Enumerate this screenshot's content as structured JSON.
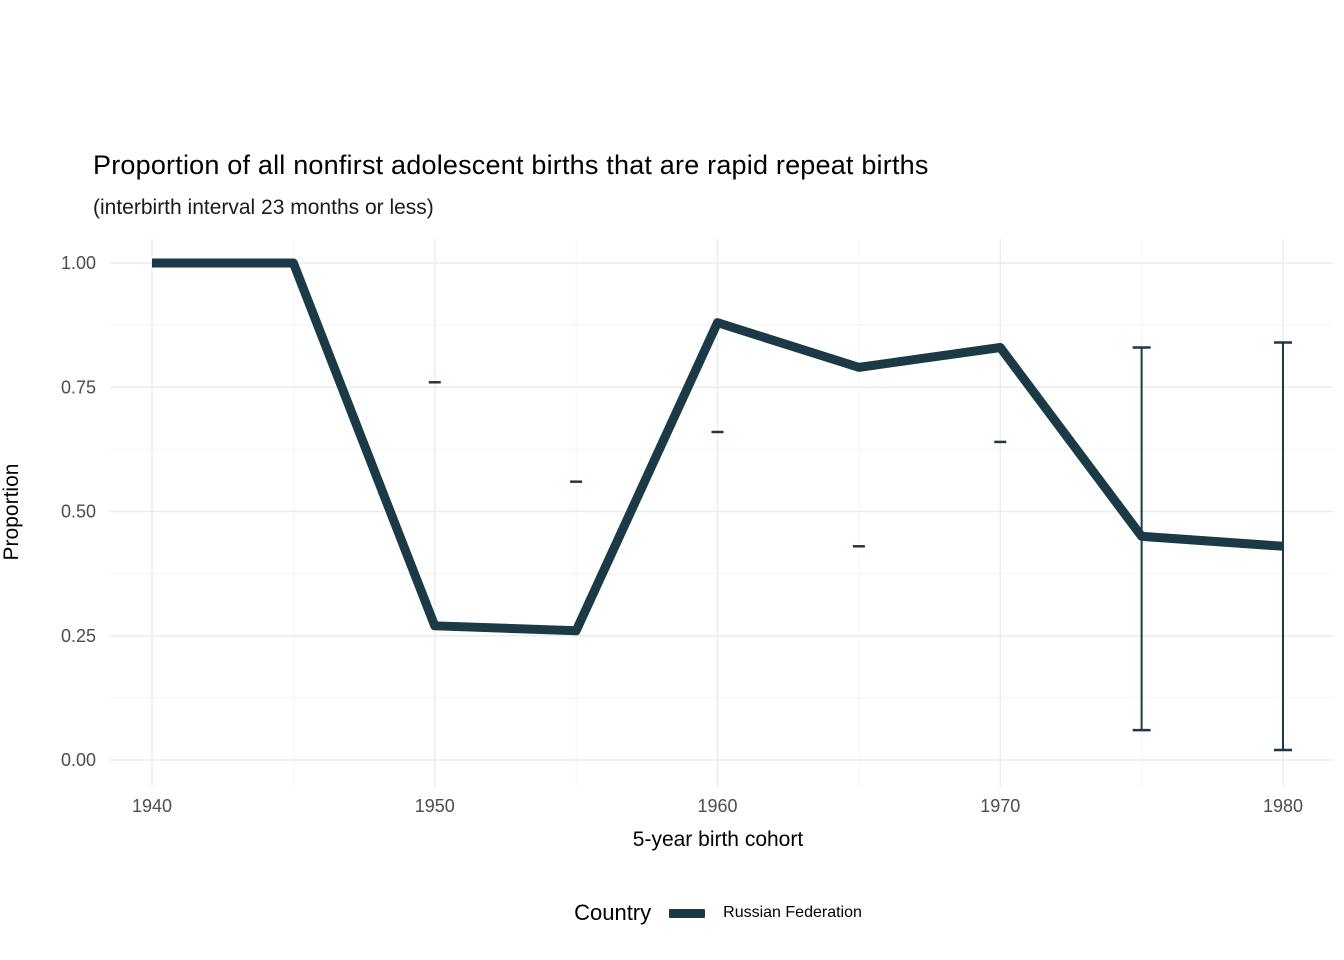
{
  "title": "Proportion of all nonfirst adolescent births that are rapid repeat births",
  "subtitle": "(interbirth interval 23 months or less)",
  "chart_data": {
    "type": "line",
    "x": [
      1940,
      1945,
      1950,
      1955,
      1960,
      1965,
      1970,
      1975,
      1980
    ],
    "series": [
      {
        "name": "Russian Federation",
        "values": [
          1.0,
          1.0,
          0.27,
          0.26,
          0.88,
          0.79,
          0.83,
          0.45,
          0.43
        ]
      }
    ],
    "error_caps": [
      {
        "x": 1950,
        "y": 0.76
      },
      {
        "x": 1955,
        "y": 0.56
      },
      {
        "x": 1960,
        "y": 0.66
      },
      {
        "x": 1965,
        "y": 0.43
      },
      {
        "x": 1970,
        "y": 0.64
      }
    ],
    "error_bars": [
      {
        "x": 1975,
        "low": 0.06,
        "high": 0.83
      },
      {
        "x": 1980,
        "low": 0.02,
        "high": 0.84
      }
    ],
    "title": "Proportion of all nonfirst adolescent births that are rapid repeat births",
    "subtitle": "(interbirth interval 23 months or less)",
    "xlabel": "5-year birth cohort",
    "ylabel": "Proportion",
    "x_ticks": [
      1940,
      1950,
      1960,
      1970,
      1980
    ],
    "x_minor_ticks": [
      1945,
      1955,
      1965,
      1975
    ],
    "y_ticks": [
      0.0,
      0.25,
      0.5,
      0.75,
      1.0
    ],
    "y_tick_labels": [
      "0.00",
      "0.25",
      "0.50",
      "0.75",
      "1.00"
    ],
    "y_minor_ticks": [
      0.125,
      0.375,
      0.625,
      0.875
    ],
    "xlim": [
      1938.5,
      1981.7
    ],
    "ylim": [
      -0.05,
      1.05
    ],
    "grid": true,
    "legend_position": "bottom"
  },
  "legend": {
    "title": "Country",
    "items": [
      {
        "label": "Russian Federation",
        "color": "#1b3a45"
      }
    ]
  },
  "colors": {
    "line": "#1b3a45",
    "error_bar": "#1b3a45",
    "grid_major": "#ebebeb",
    "grid_minor": "#f4f4f4",
    "axis_text": "#4d4d4d",
    "background": "#ffffff"
  }
}
